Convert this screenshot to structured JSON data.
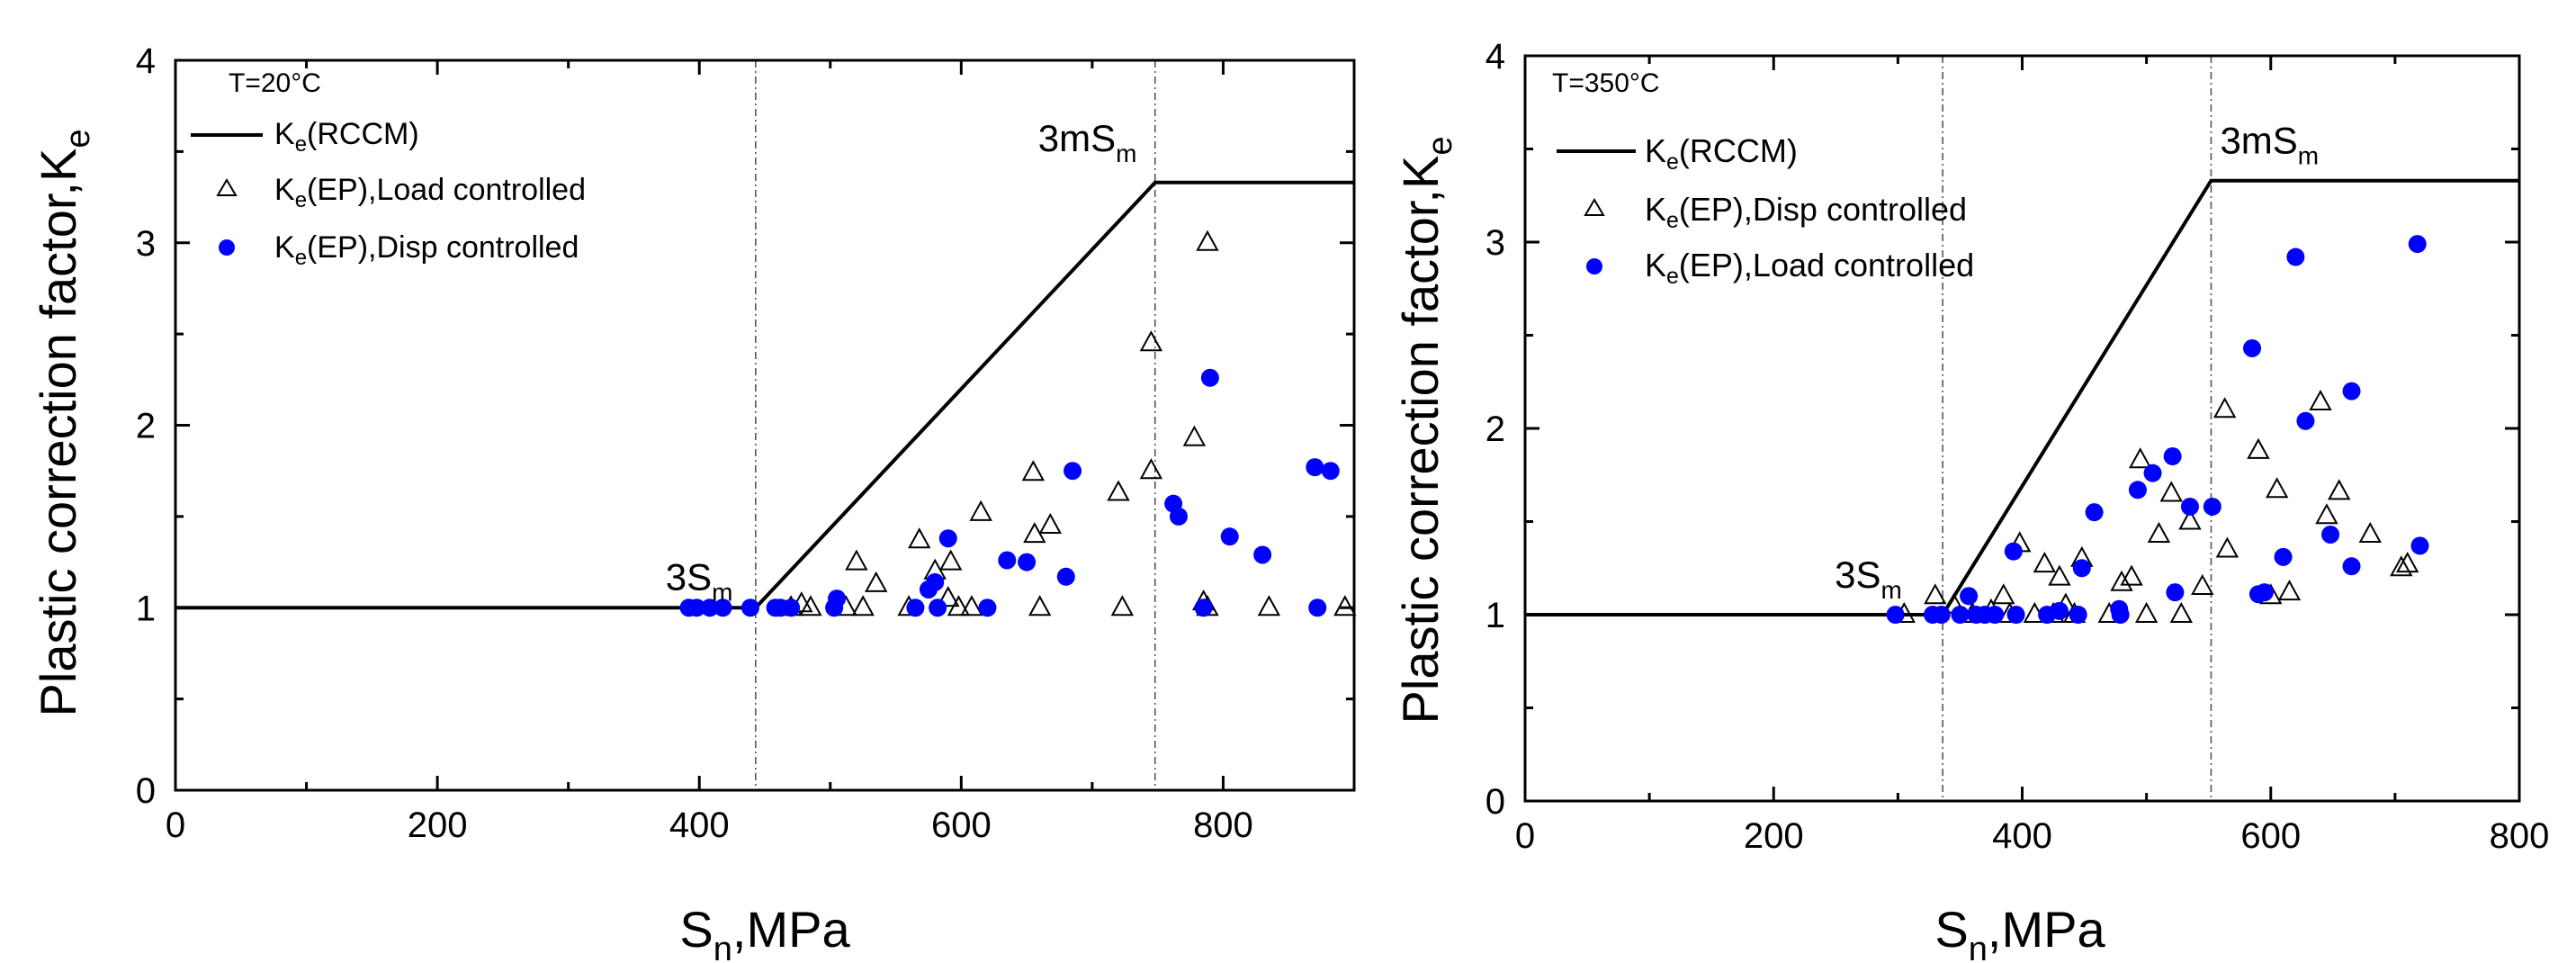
{
  "chart_data": [
    {
      "type": "scatter",
      "temperature_label": "T=20°C",
      "xlabel": "S_n,MPa",
      "ylabel": "Plastic correction factor,K_e",
      "xlim": [
        0,
        900
      ],
      "ylim": [
        0,
        4
      ],
      "xticks": [
        "0",
        "200",
        "400",
        "600",
        "800"
      ],
      "xtick_values": [
        0,
        200,
        400,
        600,
        800
      ],
      "yticks": [
        "0",
        "1",
        "2",
        "3",
        "4"
      ],
      "ytick_values": [
        0,
        1,
        2,
        3,
        4
      ],
      "legend": [
        {
          "label": "K_e(RCCM)",
          "marker": "line"
        },
        {
          "label": "K_e(EP),Load controlled",
          "marker": "open-triangle"
        },
        {
          "label": "K_e(EP),Disp controlled",
          "marker": "filled-circle"
        }
      ],
      "reference_lines": [
        {
          "x": 443,
          "label": "3S_m"
        },
        {
          "x": 748,
          "label": "3mS_m"
        }
      ],
      "rccm_curve": {
        "x": [
          0,
          443,
          748,
          900
        ],
        "y": [
          1,
          1,
          3.33,
          3.33
        ]
      },
      "series": [
        {
          "name": "K_e(EP),Load controlled",
          "marker": "triangle",
          "points": [
            [
              470,
              1
            ],
            [
              478,
              1.02
            ],
            [
              485,
              1
            ],
            [
              512,
              1
            ],
            [
              520,
              1.25
            ],
            [
              525,
              1
            ],
            [
              535,
              1.13
            ],
            [
              560,
              1
            ],
            [
              568,
              1.37
            ],
            [
              580,
              1.2
            ],
            [
              590,
              1.05
            ],
            [
              592,
              1.25
            ],
            [
              598,
              1
            ],
            [
              608,
              1
            ],
            [
              615,
              1.52
            ],
            [
              655,
              1.74
            ],
            [
              656,
              1.4
            ],
            [
              660,
              1
            ],
            [
              668,
              1.45
            ],
            [
              720,
              1.63
            ],
            [
              723,
              1
            ],
            [
              745,
              2.45
            ],
            [
              745,
              1.75
            ],
            [
              778,
              1.93
            ],
            [
              785,
              1.03
            ],
            [
              788,
              1
            ],
            [
              788,
              3
            ],
            [
              835,
              1
            ],
            [
              893,
              1
            ]
          ]
        },
        {
          "name": "K_e(EP),Disp controlled",
          "marker": "circle",
          "points": [
            [
              392,
              1
            ],
            [
              398,
              1
            ],
            [
              408,
              1
            ],
            [
              418,
              1
            ],
            [
              439,
              1
            ],
            [
              458,
              1
            ],
            [
              462,
              1
            ],
            [
              470,
              1
            ],
            [
              503,
              1
            ],
            [
              505,
              1.05
            ],
            [
              565,
              1
            ],
            [
              575,
              1.1
            ],
            [
              580,
              1.14
            ],
            [
              582,
              1
            ],
            [
              590,
              1.38
            ],
            [
              620,
              1
            ],
            [
              635,
              1.26
            ],
            [
              650,
              1.25
            ],
            [
              680,
              1.17
            ],
            [
              685,
              1.75
            ],
            [
              762,
              1.57
            ],
            [
              766,
              1.5
            ],
            [
              785,
              1
            ],
            [
              790,
              2.26
            ],
            [
              805,
              1.39
            ],
            [
              830,
              1.29
            ],
            [
              870,
              1.77
            ],
            [
              872,
              1
            ],
            [
              882,
              1.75
            ]
          ]
        }
      ]
    },
    {
      "type": "scatter",
      "temperature_label": "T=350°C",
      "xlabel": "S_n,MPa",
      "ylabel": "Plastic correction factor,K_e",
      "xlim": [
        0,
        800
      ],
      "ylim": [
        0,
        4
      ],
      "xticks": [
        "0",
        "200",
        "400",
        "600",
        "800"
      ],
      "xtick_values": [
        0,
        200,
        400,
        600,
        800
      ],
      "yticks": [
        "0",
        "1",
        "2",
        "3",
        "4"
      ],
      "ytick_values": [
        0,
        1,
        2,
        3,
        4
      ],
      "legend": [
        {
          "label": "K_e(RCCM)",
          "marker": "line"
        },
        {
          "label": "K_e(EP),Disp controlled",
          "marker": "open-triangle"
        },
        {
          "label": "K_e(EP),Load controlled",
          "marker": "filled-circle"
        }
      ],
      "reference_lines": [
        {
          "x": 336,
          "label": "3S_m"
        },
        {
          "x": 552,
          "label": "3mS_m"
        }
      ],
      "rccm_curve": {
        "x": [
          0,
          336,
          552,
          800
        ],
        "y": [
          1,
          1,
          3.33,
          3.33
        ]
      },
      "series": [
        {
          "name": "K_e(EP),Disp controlled",
          "marker": "triangle",
          "points": [
            [
              305,
              1
            ],
            [
              330,
              1.1
            ],
            [
              345,
              1.05
            ],
            [
              360,
              1
            ],
            [
              375,
              1.02
            ],
            [
              385,
              1.1
            ],
            [
              390,
              1
            ],
            [
              398,
              1.38
            ],
            [
              410,
              1
            ],
            [
              418,
              1.27
            ],
            [
              425,
              1
            ],
            [
              430,
              1.2
            ],
            [
              435,
              1.05
            ],
            [
              442,
              1
            ],
            [
              448,
              1.3
            ],
            [
              470,
              1
            ],
            [
              480,
              1.17
            ],
            [
              488,
              1.2
            ],
            [
              495,
              1.83
            ],
            [
              500,
              1
            ],
            [
              510,
              1.43
            ],
            [
              520,
              1.65
            ],
            [
              528,
              1
            ],
            [
              535,
              1.5
            ],
            [
              545,
              1.15
            ],
            [
              563,
              2.1
            ],
            [
              565,
              1.35
            ],
            [
              590,
              1.88
            ],
            [
              600,
              1.1
            ],
            [
              605,
              1.67
            ],
            [
              615,
              1.12
            ],
            [
              640,
              2.14
            ],
            [
              645,
              1.53
            ],
            [
              655,
              1.66
            ],
            [
              680,
              1.43
            ],
            [
              705,
              1.25
            ],
            [
              710,
              1.27
            ]
          ]
        },
        {
          "name": "K_e(EP),Load controlled",
          "marker": "circle",
          "points": [
            [
              298,
              1
            ],
            [
              328,
              1
            ],
            [
              335,
              1
            ],
            [
              350,
              1
            ],
            [
              357,
              1.1
            ],
            [
              363,
              1
            ],
            [
              370,
              1
            ],
            [
              378,
              1
            ],
            [
              393,
              1.34
            ],
            [
              395,
              1
            ],
            [
              420,
              1
            ],
            [
              430,
              1.02
            ],
            [
              445,
              1
            ],
            [
              448,
              1.25
            ],
            [
              458,
              1.55
            ],
            [
              478,
              1.03
            ],
            [
              479,
              1
            ],
            [
              493,
              1.67
            ],
            [
              505,
              1.76
            ],
            [
              521,
              1.85
            ],
            [
              523,
              1.12
            ],
            [
              535,
              1.58
            ],
            [
              553,
              1.58
            ],
            [
              585,
              2.43
            ],
            [
              590,
              1.11
            ],
            [
              595,
              1.12
            ],
            [
              610,
              1.31
            ],
            [
              620,
              2.92
            ],
            [
              628,
              2.04
            ],
            [
              648,
              1.43
            ],
            [
              665,
              1.26
            ],
            [
              665,
              2.2
            ],
            [
              718,
              2.99
            ],
            [
              720,
              1.37
            ]
          ]
        }
      ]
    }
  ]
}
